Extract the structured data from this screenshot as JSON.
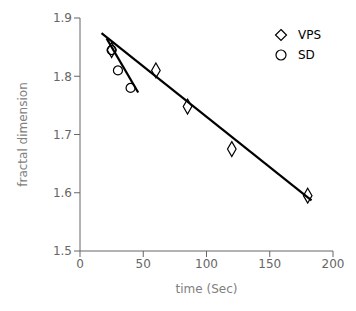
{
  "chart_data": {
    "type": "scatter",
    "xlabel": "time (Sec)",
    "ylabel": "fractal dimension",
    "xlim": [
      0,
      200
    ],
    "ylim": [
      1.5,
      1.9
    ],
    "xticks": [
      0,
      50,
      100,
      150,
      200
    ],
    "yticks": [
      1.5,
      1.6,
      1.7,
      1.8,
      1.9
    ],
    "legend": "upper right",
    "series": [
      {
        "type": "line",
        "color": "#000000",
        "line_style": "solid",
        "x": [
          17,
          183
        ],
        "values": [
          1.874,
          1.587
        ]
      },
      {
        "type": "line",
        "color": "#000000",
        "line_style": "solid",
        "x": [
          21,
          46
        ],
        "values": [
          1.865,
          1.772
        ]
      },
      {
        "name": "VPS",
        "type": "scatter",
        "marker": "diamond",
        "color": "#000000",
        "x": [
          25,
          60,
          85,
          120,
          180
        ],
        "values": [
          1.845,
          1.81,
          1.748,
          1.675,
          1.595
        ]
      },
      {
        "name": "SD",
        "type": "scatter",
        "marker": "circle",
        "color": "#000000",
        "x": [
          25,
          30,
          40
        ],
        "values": [
          1.845,
          1.81,
          1.78
        ]
      }
    ]
  }
}
